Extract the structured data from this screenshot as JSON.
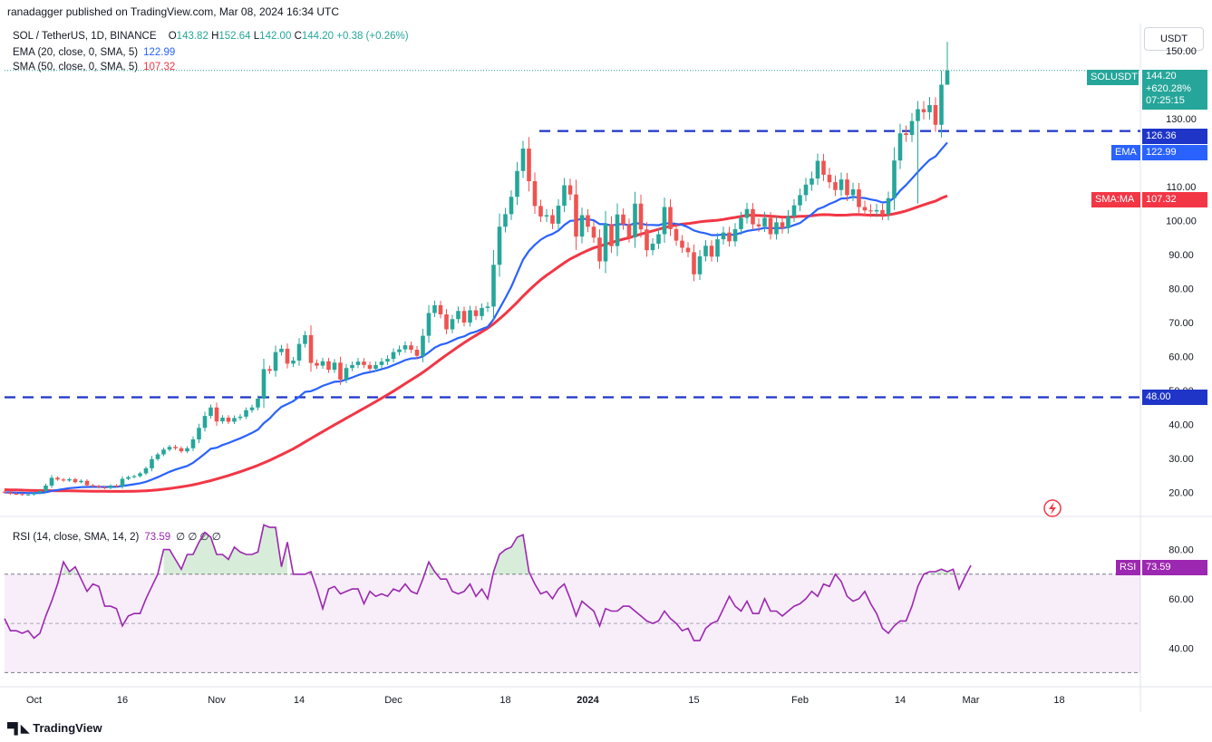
{
  "header": {
    "published": "ranadagger published on TradingView.com, Mar 08, 2024 16:34 UTC",
    "symbol_line": "SOL / TetherUS, 1D, BINANCE",
    "ohlc": {
      "o_label": "O",
      "o": "143.82",
      "h_label": "H",
      "h": "152.64",
      "l_label": "L",
      "l": "142.00",
      "c_label": "C",
      "c": "144.20",
      "change": "+0.38 (+0.26%)"
    },
    "ema_label": "EMA (20, close, 0, SMA, 5)",
    "ema_value": "122.99",
    "sma_label": "SMA (50, close, 0, SMA, 5)",
    "sma_value": "107.32",
    "rsi_label": "RSI (14, close, SMA, 14, 2)",
    "rsi_value": "73.59",
    "rsi_extra": "∅ ∅ ∅ ∅"
  },
  "price_scale": {
    "currency": "USDT",
    "symbol_tag": "SOLUSDT",
    "price": "144.20",
    "pct": "+620.28%",
    "countdown": "07:25:15",
    "level_high": "126.36",
    "level_low": "48.00",
    "ema_tag": "EMA",
    "sma_tag": "SMA:MA",
    "rsi_tag": "RSI"
  },
  "footer": {
    "brand": "TradingView"
  },
  "colors": {
    "up": "#26a69a",
    "down": "#ef5350",
    "ema": "#2962ff",
    "sma": "#f23645",
    "rsi": "#9c27b0",
    "level": "#1e35c8"
  },
  "chart_data": [
    {
      "type": "candlestick",
      "title": "SOL / TetherUS, 1D, BINANCE",
      "ylim": [
        14,
        158
      ],
      "y_ticks": [
        "20.00",
        "30.00",
        "40.00",
        "50.00",
        "60.00",
        "70.00",
        "80.00",
        "90.00",
        "100.00",
        "110.00",
        "120.00",
        "130.00",
        "140.00",
        "150.00"
      ],
      "x_ticks": [
        "Oct",
        "16",
        "Nov",
        "14",
        "Dec",
        "18",
        "2024",
        "15",
        "Feb",
        "14",
        "Mar",
        "18"
      ],
      "x_tick_days": [
        5,
        20,
        36,
        50,
        66,
        85,
        99,
        117,
        135,
        152,
        164,
        179
      ],
      "horizontal_levels": [
        126.36,
        48.0
      ],
      "close": [
        20.0,
        19.6,
        19.5,
        19.3,
        19.4,
        19.8,
        20.4,
        22.0,
        24.3,
        23.8,
        23.5,
        23.9,
        23.0,
        23.4,
        22.1,
        21.9,
        21.5,
        21.3,
        22.0,
        21.8,
        24.0,
        24.5,
        24.8,
        25.6,
        27.1,
        29.8,
        31.2,
        32.6,
        33.4,
        33.0,
        32.1,
        33.0,
        35.6,
        39.0,
        42.5,
        45.0,
        40.9,
        42.0,
        40.8,
        41.9,
        42.3,
        44.2,
        45.0,
        47.6,
        56.3,
        55.8,
        61.3,
        62.3,
        57.9,
        58.8,
        63.7,
        66.3,
        58.1,
        57.3,
        58.6,
        56.1,
        58.2,
        53.2,
        56.6,
        57.5,
        58.5,
        57.5,
        56.4,
        57.5,
        58.5,
        59.3,
        61.3,
        62.1,
        63.3,
        62.0,
        60.2,
        66.1,
        72.8,
        75.1,
        72.4,
        68.0,
        71.0,
        73.4,
        70.0,
        73.6,
        71.9,
        74.3,
        74.7,
        87.0,
        98.2,
        101.9,
        107.0,
        114.6,
        121.2,
        111.6,
        104.3,
        101.2,
        101.6,
        99.1,
        104.4,
        110.4,
        107.7,
        95.3,
        101.6,
        98.2,
        95.0,
        88.0,
        99.0,
        92.5,
        101.8,
        98.9,
        95.1,
        105.0,
        97.4,
        91.3,
        93.2,
        96.0,
        104.0,
        97.5,
        94.1,
        92.0,
        90.7,
        84.2,
        89.5,
        92.6,
        89.4,
        94.5,
        96.5,
        93.9,
        97.5,
        100.8,
        103.4,
        98.9,
        98.3,
        100.8,
        96.0,
        99.5,
        97.8,
        101.3,
        104.5,
        107.5,
        110.6,
        112.4,
        117.6,
        113.5,
        111.3,
        109.0,
        112.1,
        107.5,
        109.2,
        104.0,
        103.0,
        102.7,
        103.1,
        101.8,
        106.6,
        117.7,
        125.7,
        125.2,
        129.3,
        132.8,
        131.9,
        134.0,
        128.2,
        140.0,
        144.2
      ],
      "ema": [
        20.0,
        19.96,
        19.92,
        19.86,
        19.82,
        19.81,
        19.83,
        20.04,
        20.43,
        20.72,
        20.98,
        21.26,
        21.39,
        21.55,
        21.6,
        21.63,
        21.62,
        21.59,
        21.64,
        21.66,
        21.89,
        22.14,
        22.39,
        22.7,
        23.12,
        23.76,
        24.47,
        25.29,
        26.06,
        26.73,
        27.25,
        27.8,
        28.73,
        30.03,
        31.4,
        32.86,
        33.15,
        33.95,
        34.54,
        35.25,
        35.91,
        36.69,
        37.51,
        38.48,
        40.37,
        41.77,
        43.62,
        45.18,
        46.01,
        46.85,
        48.14,
        49.59,
        49.8,
        50.51,
        51.37,
        51.97,
        52.56,
        52.67,
        53.23,
        53.85,
        54.52,
        55.06,
        55.38,
        55.79,
        56.27,
        56.74,
        57.47,
        58.16,
        58.93,
        59.41,
        59.5,
        60.02,
        61.23,
        62.6,
        63.44,
        63.88,
        64.66,
        65.44,
        65.91,
        66.83,
        67.3,
        68.07,
        68.72,
        70.95,
        74.09,
        77.21,
        80.52,
        84.54,
        88.51,
        91.08,
        92.89,
        94.37,
        95.41,
        96.07,
        97.08,
        98.7,
        99.92,
        100.04,
        100.61,
        100.38,
        100.07,
        98.97,
        98.95,
        98.56,
        98.88,
        98.97,
        98.63,
        99.24,
        99.1,
        98.75,
        98.72,
        98.64,
        99.16,
        99.24,
        99.03,
        98.74,
        98.06,
        97.09,
        96.6,
        96.25,
        95.73,
        95.74,
        95.91,
        95.75,
        95.91,
        96.38,
        96.96,
        97.23,
        97.43,
        97.9,
        97.7,
        97.85,
        97.8,
        98.06,
        98.69,
        99.29,
        100.6,
        101.86,
        103.36,
        104.01,
        104.9,
        105.59,
        106.51,
        106.56,
        106.98,
        106.74,
        106.64,
        106.21,
        105.91,
        105.34,
        105.53,
        106.68,
        108.83,
        110.49,
        112.38,
        114.29,
        116.17,
        117.86,
        118.88,
        120.99,
        122.99
      ],
      "sma": [
        20.8,
        20.76,
        20.71,
        20.66,
        20.61,
        20.57,
        20.54,
        20.52,
        20.51,
        20.49,
        20.47,
        20.45,
        20.42,
        20.4,
        20.38,
        20.35,
        20.33,
        20.31,
        20.3,
        20.29,
        20.3,
        20.32,
        20.35,
        20.4,
        20.48,
        20.6,
        20.75,
        20.94,
        21.15,
        21.38,
        21.63,
        21.92,
        22.25,
        22.62,
        23.03,
        23.48,
        23.95,
        24.45,
        24.97,
        25.52,
        26.09,
        26.69,
        27.32,
        27.98,
        28.7,
        29.45,
        30.26,
        31.1,
        31.95,
        32.82,
        33.82,
        34.85,
        35.87,
        36.88,
        37.89,
        38.87,
        39.88,
        40.84,
        41.83,
        42.8,
        43.79,
        44.76,
        45.73,
        46.73,
        47.73,
        48.74,
        49.79,
        50.87,
        51.99,
        53.1,
        54.18,
        55.33,
        56.59,
        57.9,
        59.2,
        60.45,
        61.65,
        62.88,
        64.03,
        65.18,
        66.21,
        67.29,
        68.36,
        69.63,
        71.07,
        72.6,
        74.24,
        75.96,
        77.76,
        79.46,
        81.06,
        82.6,
        83.93,
        85.12,
        86.36,
        87.56,
        88.7,
        89.58,
        90.45,
        91.24,
        91.97,
        92.45,
        93.04,
        93.53,
        94.07,
        94.53,
        94.95,
        95.51,
        96.04,
        96.51,
        96.96,
        97.44,
        97.96,
        98.35,
        98.68,
        98.95,
        99.13,
        99.36,
        99.64,
        99.85,
        99.98,
        100.11,
        100.36,
        100.66,
        100.93,
        101.26,
        101.57,
        101.56,
        101.5,
        101.44,
        101.31,
        101.21,
        101.05,
        101.05,
        101.13,
        101.27,
        101.29,
        101.43,
        101.66,
        101.76,
        101.73,
        101.61,
        101.61,
        101.63,
        101.77,
        101.82,
        101.65,
        101.6,
        101.61,
        101.55,
        101.71,
        102.0,
        102.4,
        102.86,
        103.44,
        104.04,
        104.64,
        105.22,
        105.74,
        106.58,
        107.32
      ],
      "rsi": [
        52.0,
        47.0,
        47.0,
        46.0,
        47.0,
        44.0,
        46.0,
        53.0,
        59.0,
        66.0,
        75.0,
        71.0,
        73.0,
        68.0,
        63.0,
        66.0,
        65.0,
        57.0,
        57.0,
        56.0,
        49.0,
        53.0,
        54.0,
        54.0,
        60.0,
        65.0,
        70.0,
        80.0,
        80.0,
        76.0,
        72.0,
        78.0,
        78.0,
        83.0,
        87.0,
        85.0,
        78.0,
        78.0,
        76.0,
        81.0,
        79.0,
        78.0,
        78.0,
        79.0,
        90.0,
        89.0,
        89.0,
        73.0,
        83.0,
        70.0,
        70.0,
        70.0,
        71.0,
        64.0,
        56.0,
        64.0,
        65.0,
        62.0,
        63.0,
        64.0,
        64.0,
        58.0,
        63.0,
        61.0,
        62.0,
        61.0,
        64.0,
        63.0,
        66.0,
        63.0,
        62.0,
        68.0,
        75.0,
        71.0,
        68.0,
        68.0,
        63.0,
        62.0,
        63.0,
        66.0,
        61.0,
        64.0,
        60.0,
        71.0,
        78.0,
        80.0,
        81.0,
        85.0,
        86.0,
        71.0,
        66.0,
        62.0,
        63.0,
        60.0,
        64.0,
        66.0,
        60.0,
        53.0,
        59.0,
        57.0,
        55.0,
        49.0,
        56.0,
        55.0,
        55.0,
        57.0,
        57.0,
        55.0,
        53.0,
        51.0,
        50.0,
        51.0,
        55.0,
        52.0,
        50.0,
        47.0,
        48.0,
        43.0,
        43.0,
        48.0,
        50.0,
        51.0,
        56.0,
        61.0,
        57.0,
        55.0,
        59.0,
        54.0,
        54.0,
        60.0,
        55.0,
        55.0,
        53.0,
        55.0,
        57.0,
        58.0,
        60.0,
        63.0,
        61.0,
        66.0,
        65.0,
        70.0,
        67.0,
        61.0,
        59.0,
        60.0,
        63.0,
        58.0,
        54.0,
        48.0,
        46.0,
        49.0,
        51.0,
        51.0,
        57.0,
        65.0,
        70.0,
        71.0,
        71.0,
        72.0,
        71.0,
        72.0,
        64.0,
        69.0,
        73.59
      ]
    },
    {
      "type": "line",
      "title": "RSI (14, close, SMA, 14, 2)",
      "ylim": [
        25,
        92
      ],
      "y_ticks": [
        "40.00",
        "60.00",
        "80.00"
      ],
      "band": [
        30,
        70
      ],
      "midline": 50
    }
  ]
}
